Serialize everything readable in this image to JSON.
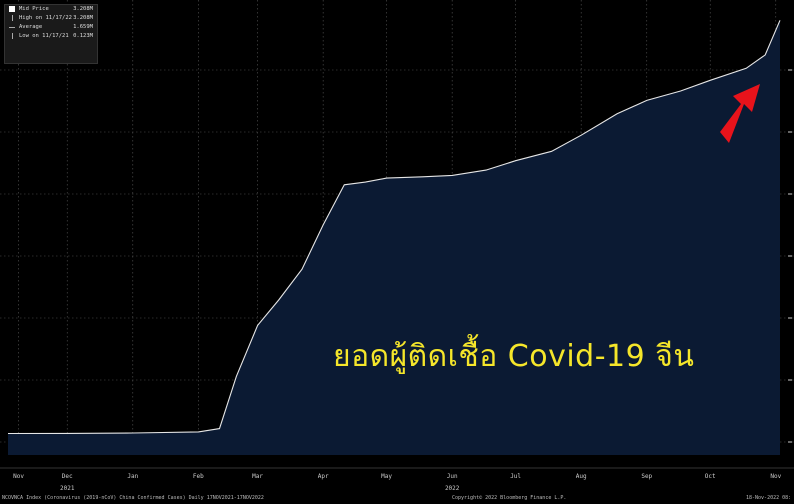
{
  "legend": {
    "items": [
      {
        "label": "Mid Price",
        "value": "3.208M"
      },
      {
        "label": "High on 11/17/22",
        "value": "3.208M"
      },
      {
        "label": "Average",
        "value": "1.659M"
      },
      {
        "label": "Low on 11/17/21",
        "value": "0.123M"
      }
    ]
  },
  "overlay_text": "ยอดผู้ติดเชื้อ Covid-19 จีน",
  "footer": {
    "left": "NCOVNCA Index (Coronavirus (2019-nCoV) China Confirmed Cases)  Daily 17NOV2021-17NOV2022",
    "center": "Copyright© 2022 Bloomberg Finance L.P.",
    "right": "18-Nov-2022 08:"
  },
  "colors": {
    "fill": "#0b1a33",
    "line": "#e6e6e6",
    "arrow": "#e8131b",
    "overlay": "#f5e62a"
  },
  "chart_data": {
    "type": "area",
    "x_months": [
      "Nov",
      "Dec",
      "Jan",
      "Feb",
      "Mar",
      "Apr",
      "May",
      "Jun",
      "Jul",
      "Aug",
      "Sep",
      "Oct",
      "Nov"
    ],
    "year_labels": [
      "2021",
      "2022"
    ],
    "x": [
      "2021-11-17",
      "2021-12-15",
      "2022-01-15",
      "2022-02-15",
      "2022-02-25",
      "2022-03-05",
      "2022-03-15",
      "2022-03-25",
      "2022-04-05",
      "2022-04-15",
      "2022-04-25",
      "2022-05-05",
      "2022-05-15",
      "2022-06-01",
      "2022-06-15",
      "2022-07-01",
      "2022-07-15",
      "2022-08-01",
      "2022-08-15",
      "2022-09-01",
      "2022-09-15",
      "2022-10-01",
      "2022-10-15",
      "2022-11-01",
      "2022-11-10",
      "2022-11-17"
    ],
    "values": [
      0.123,
      0.124,
      0.127,
      0.135,
      0.16,
      0.55,
      0.93,
      1.12,
      1.35,
      1.68,
      1.98,
      2.0,
      2.03,
      2.04,
      2.05,
      2.09,
      2.16,
      2.23,
      2.35,
      2.51,
      2.61,
      2.68,
      2.76,
      2.85,
      2.95,
      3.208
    ],
    "series": [
      {
        "name": "Mid Price"
      }
    ],
    "ylim": [
      0,
      3.3
    ],
    "grid": true
  }
}
